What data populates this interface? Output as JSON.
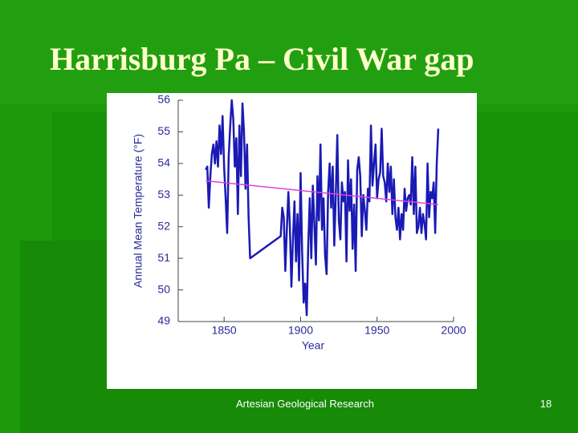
{
  "header": {
    "title": "Harrisburg Pa – Civil War gap"
  },
  "footer": {
    "text": "Artesian Geological Research",
    "slide_number": "18"
  },
  "chart_data": {
    "type": "line",
    "xlabel": "Year",
    "ylabel": "Annual Mean Temperature (°F)",
    "xlim": [
      1820,
      2000
    ],
    "xticks": [
      1850,
      1900,
      1950,
      2000
    ],
    "ylim": [
      49,
      56
    ],
    "yticks": [
      49,
      50,
      51,
      52,
      53,
      54,
      55,
      56
    ],
    "series": [
      {
        "color": "#1a1ab4",
        "x": [
          1838,
          1839,
          1840,
          1841,
          1842,
          1843,
          1844,
          1845,
          1846,
          1847,
          1848,
          1849,
          1850,
          1851,
          1852,
          1853,
          1854,
          1855,
          1856,
          1857,
          1858,
          1859,
          1860,
          1861,
          1862,
          1863,
          1864,
          1865,
          1866,
          1867,
          1887,
          1888,
          1889,
          1890,
          1891,
          1892,
          1893,
          1894,
          1895,
          1896,
          1897,
          1898,
          1899,
          1900,
          1901,
          1902,
          1903,
          1904,
          1905,
          1906,
          1907,
          1908,
          1909,
          1910,
          1911,
          1912,
          1913,
          1914,
          1915,
          1916,
          1917,
          1918,
          1919,
          1920,
          1921,
          1922,
          1923,
          1924,
          1925,
          1926,
          1927,
          1928,
          1929,
          1930,
          1931,
          1932,
          1933,
          1934,
          1935,
          1936,
          1937,
          1938,
          1939,
          1940,
          1941,
          1942,
          1943,
          1944,
          1945,
          1946,
          1947,
          1948,
          1949,
          1950,
          1951,
          1952,
          1953,
          1954,
          1955,
          1956,
          1957,
          1958,
          1959,
          1960,
          1961,
          1962,
          1963,
          1964,
          1965,
          1966,
          1967,
          1968,
          1969,
          1970,
          1971,
          1972,
          1973,
          1974,
          1975,
          1976,
          1977,
          1978,
          1979,
          1980,
          1981,
          1982,
          1983,
          1984,
          1985,
          1986,
          1987,
          1988,
          1989,
          1990
        ],
        "values": [
          53.8,
          53.9,
          52.6,
          53.6,
          54.3,
          54.6,
          54.0,
          54.7,
          53.9,
          55.2,
          54.3,
          55.5,
          53.9,
          52.9,
          51.8,
          54.2,
          55.2,
          56.0,
          55.4,
          53.9,
          54.8,
          52.4,
          55.2,
          53.6,
          55.9,
          55.0,
          53.2,
          54.6,
          52.3,
          51.0,
          51.7,
          52.6,
          52.3,
          50.6,
          51.9,
          53.1,
          52.0,
          50.1,
          51.6,
          52.8,
          50.9,
          52.4,
          50.3,
          53.7,
          51.2,
          49.6,
          50.2,
          49.2,
          51.4,
          52.9,
          51.0,
          53.3,
          52.1,
          50.8,
          53.6,
          52.2,
          54.6,
          51.9,
          52.9,
          51.1,
          50.5,
          53.1,
          54.0,
          52.6,
          53.9,
          51.4,
          53.0,
          54.9,
          52.2,
          51.6,
          53.4,
          52.8,
          53.1,
          50.9,
          54.1,
          52.5,
          53.5,
          51.3,
          52.7,
          50.6,
          53.8,
          54.2,
          53.6,
          51.7,
          53.0,
          52.5,
          51.9,
          53.2,
          52.8,
          55.2,
          53.3,
          54.0,
          54.6,
          52.9,
          53.5,
          53.7,
          55.1,
          53.6,
          53.4,
          52.8,
          54.0,
          53.1,
          53.9,
          52.4,
          53.5,
          52.3,
          51.9,
          52.6,
          51.6,
          52.4,
          51.9,
          53.2,
          52.5,
          52.9,
          53.0,
          52.7,
          54.2,
          52.4,
          53.9,
          51.8,
          52.0,
          52.6,
          51.8,
          52.4,
          52.1,
          51.6,
          54.0,
          52.3,
          53.1,
          52.9,
          53.4,
          51.8,
          54.0,
          55.1
        ]
      },
      {
        "color": "#e040e0",
        "x": [
          1838,
          1990
        ],
        "values": [
          53.45,
          52.7
        ]
      }
    ]
  }
}
